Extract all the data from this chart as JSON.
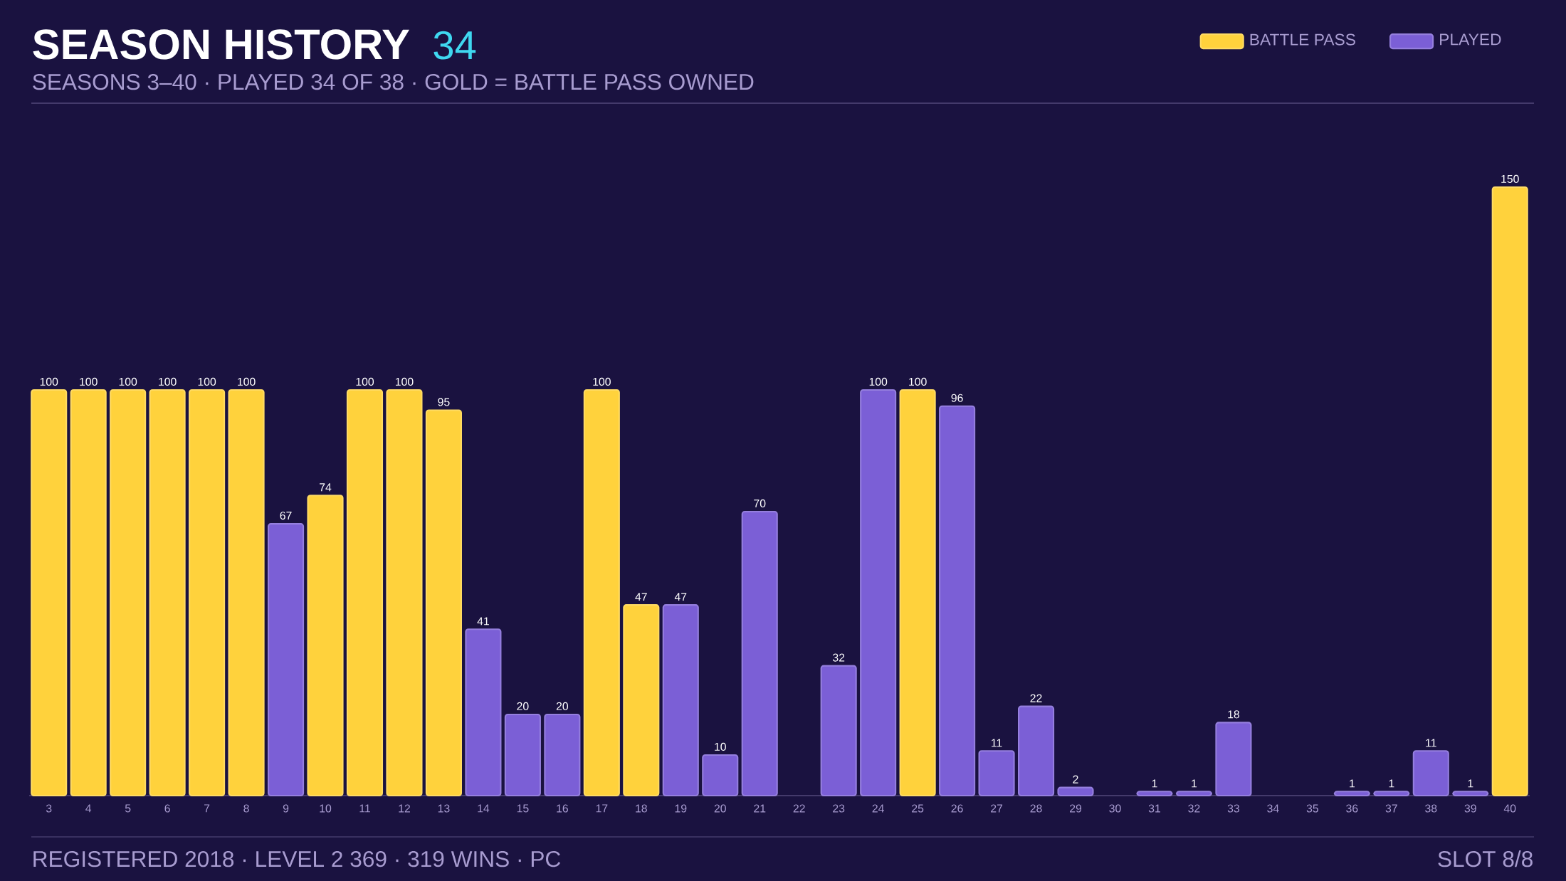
{
  "chart_data": {
    "type": "bar",
    "title": "SEASON HISTORY",
    "subtitle": "SEASONS 3–40  ·  PLAYED 34 OF 38  ·  GOLD = BATTLE PASS OWNED",
    "annotations": [
      "34",
      "REGISTERED 2018  ·  LEVEL 2 369  ·  319 WINS  ·  PC",
      "SLOT 8/8"
    ],
    "categories": [
      "3",
      "4",
      "5",
      "6",
      "7",
      "8",
      "9",
      "10",
      "11",
      "12",
      "13",
      "14",
      "15",
      "16",
      "17",
      "18",
      "19",
      "20",
      "21",
      "22",
      "23",
      "24",
      "25",
      "26",
      "27",
      "28",
      "29",
      "30",
      "31",
      "32",
      "33",
      "34",
      "35",
      "36",
      "37",
      "38",
      "39",
      "40"
    ],
    "series": [
      {
        "name": "BATTLE PASS",
        "color": "#ffd23c",
        "values": [
          100,
          100,
          100,
          100,
          100,
          100,
          null,
          74,
          100,
          100,
          95,
          null,
          null,
          null,
          100,
          47,
          null,
          null,
          null,
          null,
          null,
          null,
          100,
          null,
          null,
          null,
          null,
          null,
          null,
          null,
          null,
          null,
          null,
          null,
          null,
          null,
          null,
          150
        ]
      },
      {
        "name": "PLAYED",
        "color": "#7b5fd6",
        "values": [
          null,
          null,
          null,
          null,
          null,
          null,
          67,
          null,
          null,
          null,
          null,
          41,
          20,
          20,
          null,
          null,
          47,
          10,
          70,
          null,
          32,
          100,
          null,
          96,
          11,
          22,
          2,
          null,
          1,
          1,
          18,
          null,
          null,
          1,
          1,
          11,
          1,
          null
        ]
      }
    ],
    "data_labels": true,
    "legend": "top right"
  }
}
